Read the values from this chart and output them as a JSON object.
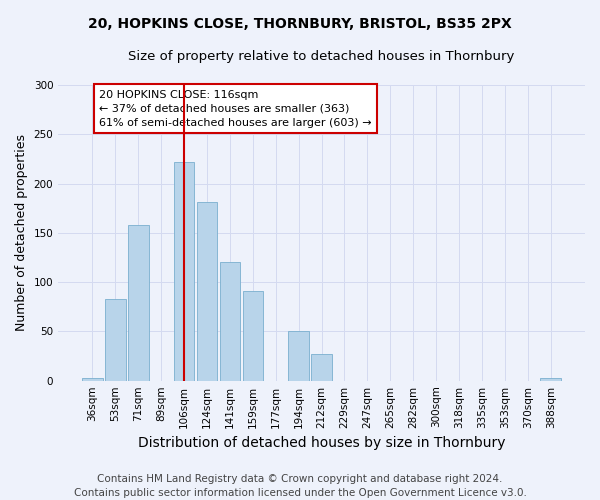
{
  "title1": "20, HOPKINS CLOSE, THORNBURY, BRISTOL, BS35 2PX",
  "title2": "Size of property relative to detached houses in Thornbury",
  "xlabel": "Distribution of detached houses by size in Thornbury",
  "ylabel": "Number of detached properties",
  "categories": [
    "36sqm",
    "53sqm",
    "71sqm",
    "89sqm",
    "106sqm",
    "124sqm",
    "141sqm",
    "159sqm",
    "177sqm",
    "194sqm",
    "212sqm",
    "229sqm",
    "247sqm",
    "265sqm",
    "282sqm",
    "300sqm",
    "318sqm",
    "335sqm",
    "353sqm",
    "370sqm",
    "388sqm"
  ],
  "values": [
    3,
    83,
    158,
    0,
    222,
    181,
    120,
    91,
    0,
    50,
    27,
    0,
    0,
    0,
    0,
    0,
    0,
    0,
    0,
    0,
    3
  ],
  "bar_color": "#b8d4ea",
  "bar_edge_color": "#7aafcf",
  "vline_x": 4.0,
  "vline_color": "#cc0000",
  "annotation_text": "20 HOPKINS CLOSE: 116sqm\n← 37% of detached houses are smaller (363)\n61% of semi-detached houses are larger (603) →",
  "annotation_box_color": "#ffffff",
  "annotation_box_edge": "#cc0000",
  "ylim": [
    0,
    300
  ],
  "yticks": [
    0,
    50,
    100,
    150,
    200,
    250,
    300
  ],
  "footer": "Contains HM Land Registry data © Crown copyright and database right 2024.\nContains public sector information licensed under the Open Government Licence v3.0.",
  "bg_color": "#eef2fb",
  "grid_color": "#d4daf0",
  "title1_fontsize": 10,
  "title2_fontsize": 9.5,
  "xlabel_fontsize": 10,
  "ylabel_fontsize": 9,
  "footer_fontsize": 7.5,
  "annotation_fontsize": 8,
  "tick_fontsize": 7.5
}
